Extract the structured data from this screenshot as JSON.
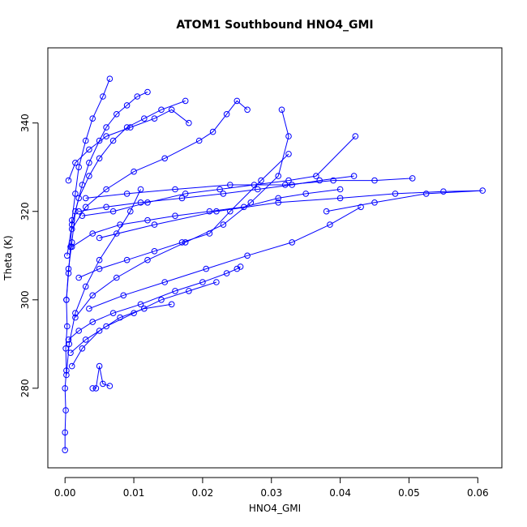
{
  "chart_data": {
    "type": "line",
    "title": "ATOM1 Southbound HNO4_GMI",
    "xlabel": "HNO4_GMI",
    "ylabel": "Theta (K)",
    "xlim": [
      -0.0025,
      0.0635
    ],
    "ylim": [
      262,
      357
    ],
    "x_ticks": [
      "0.00",
      "0.01",
      "0.02",
      "0.03",
      "0.04",
      "0.05",
      "0.06"
    ],
    "y_ticks": [
      "280",
      "300",
      "320",
      "340"
    ],
    "series_color": "#0000ff",
    "marker": "open-circle",
    "grid": false,
    "series": [
      {
        "x": [
          0.0,
          0.0,
          0.0001,
          0.0,
          0.0002,
          0.0001,
          0.0003,
          0.0002,
          0.0005,
          0.0008,
          0.001,
          0.0015,
          0.002,
          0.003,
          0.004,
          0.0055,
          0.0065
        ],
        "y": [
          266,
          270,
          275,
          280,
          284,
          289,
          294,
          300,
          306,
          312,
          318,
          324,
          330,
          336,
          341,
          346,
          350
        ]
      },
      {
        "x": [
          0.0002,
          0.0005,
          0.001,
          0.0015,
          0.0025,
          0.0035,
          0.005,
          0.006,
          0.0075,
          0.009,
          0.0105,
          0.012
        ],
        "y": [
          300,
          307,
          313,
          320,
          326,
          331,
          336,
          339,
          342,
          344,
          346,
          347
        ]
      },
      {
        "x": [
          0.0003,
          0.001,
          0.002,
          0.0035,
          0.005,
          0.007,
          0.009,
          0.0115,
          0.014,
          0.0175
        ],
        "y": [
          310,
          317,
          323,
          328,
          332,
          336,
          339,
          341,
          343,
          345
        ]
      },
      {
        "x": [
          0.001,
          0.004,
          0.008,
          0.012,
          0.016,
          0.021,
          0.026,
          0.031,
          0.035,
          0.04
        ],
        "y": [
          312,
          315,
          317,
          318,
          319,
          320,
          321,
          323,
          324,
          325
        ]
      },
      {
        "x": [
          0.002,
          0.006,
          0.011,
          0.017,
          0.023,
          0.028,
          0.033,
          0.037,
          0.042
        ],
        "y": [
          320,
          321,
          322,
          323,
          324,
          325,
          326,
          327,
          328
        ]
      },
      {
        "x": [
          0.003,
          0.009,
          0.016,
          0.024,
          0.032,
          0.039,
          0.045,
          0.0505
        ],
        "y": [
          323,
          324,
          325,
          326,
          326,
          327,
          327,
          327.5
        ]
      },
      {
        "x": [
          0.005,
          0.013,
          0.022,
          0.031,
          0.04,
          0.048,
          0.055,
          0.0607,
          0.0525,
          0.045,
          0.038
        ],
        "y": [
          314,
          317,
          320,
          322,
          323,
          324,
          324.5,
          324.7,
          324,
          322,
          320
        ]
      },
      {
        "x": [
          0.0005,
          0.002,
          0.004,
          0.007,
          0.011,
          0.016,
          0.02,
          0.0235,
          0.025,
          0.0255
        ],
        "y": [
          291,
          293,
          295,
          297,
          299,
          302,
          304,
          306,
          307,
          307.5
        ]
      },
      {
        "x": [
          0.0008,
          0.003,
          0.006,
          0.01,
          0.014,
          0.018,
          0.022
        ],
        "y": [
          288,
          291,
          294,
          297,
          300,
          302,
          304
        ]
      },
      {
        "x": [
          0.001,
          0.0025,
          0.005,
          0.008,
          0.0115,
          0.0155
        ],
        "y": [
          285,
          289,
          293,
          296,
          298,
          299
        ]
      },
      {
        "x": [
          0.004,
          0.0045,
          0.005,
          0.0055,
          0.0065
        ],
        "y": [
          280,
          280,
          285,
          281,
          280.5
        ]
      },
      {
        "x": [
          0.002,
          0.005,
          0.009,
          0.013,
          0.017,
          0.021,
          0.024,
          0.0285,
          0.0325
        ],
        "y": [
          305,
          307,
          309,
          311,
          313,
          315,
          320,
          327,
          333
        ]
      },
      {
        "x": [
          0.0015,
          0.004,
          0.0075,
          0.012,
          0.0175,
          0.023,
          0.027,
          0.031,
          0.0325,
          0.0315
        ],
        "y": [
          296,
          301,
          305,
          309,
          313,
          317,
          322,
          328,
          337,
          343
        ]
      },
      {
        "x": [
          0.001,
          0.003,
          0.006,
          0.01,
          0.0145,
          0.0195,
          0.0215,
          0.0235,
          0.025,
          0.0265
        ],
        "y": [
          316,
          321,
          325,
          329,
          332,
          336,
          338,
          342,
          345,
          343
        ]
      },
      {
        "x": [
          0.0025,
          0.007,
          0.012,
          0.0175,
          0.0225,
          0.0275,
          0.0325,
          0.0365,
          0.0422
        ],
        "y": [
          319,
          320,
          322,
          324,
          325,
          326,
          327,
          328,
          337
        ]
      },
      {
        "x": [
          0.0035,
          0.0085,
          0.0145,
          0.0205,
          0.0265,
          0.033,
          0.0385,
          0.043
        ],
        "y": [
          298,
          301,
          304,
          307,
          310,
          313,
          317,
          321
        ]
      },
      {
        "x": [
          0.0005,
          0.0015,
          0.0035,
          0.006,
          0.0095,
          0.013,
          0.0155,
          0.018
        ],
        "y": [
          327,
          331,
          334,
          337,
          339,
          341,
          343,
          340
        ]
      },
      {
        "x": [
          0.0002,
          0.0006,
          0.0015,
          0.003,
          0.005,
          0.0075,
          0.0095,
          0.011
        ],
        "y": [
          283,
          290,
          297,
          303,
          309,
          315,
          320,
          325
        ]
      }
    ]
  }
}
